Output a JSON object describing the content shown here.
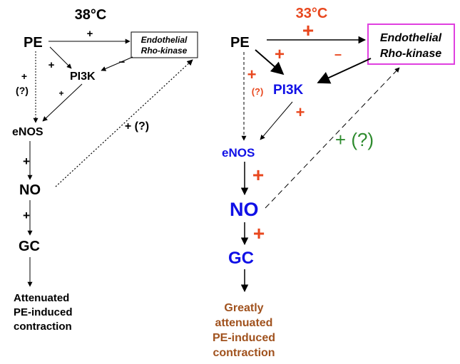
{
  "colors": {
    "black": "#000000",
    "orange": "#e8471e",
    "blue": "#1010e6",
    "green": "#2e8b2e",
    "brown": "#a0521e",
    "magenta": "#e040e0"
  },
  "left": {
    "temp": "38°C",
    "pe": "PE",
    "pi3k": "PI3K",
    "enos": "eNOS",
    "no": "NO",
    "gc": "GC",
    "rho_line1": "Endothelial",
    "rho_line2": "Rho-kinase",
    "sign_pe_rho": "+",
    "sign_pe_pi3k": "+",
    "sign_rho_pi3k": "−",
    "sign_pe_enos": "+",
    "sign_pe_enos_q": "(?)",
    "sign_pi3k_enos": "+",
    "sign_enos_no": "+",
    "sign_no_gc": "+",
    "sign_no_rho": "+ (?)",
    "outcome": [
      "Attenuated",
      "PE-induced",
      "contraction"
    ]
  },
  "right": {
    "temp": "33°C",
    "pe": "PE",
    "pi3k": "PI3K",
    "enos": "eNOS",
    "no": "NO",
    "gc": "GC",
    "rho_line1": "Endothelial",
    "rho_line2": "Rho-kinase",
    "sign_pe_rho": "+",
    "sign_pe_pi3k": "+",
    "sign_rho_pi3k": "–",
    "sign_pe_enos": "+",
    "sign_pe_enos_q": "(?)",
    "sign_pi3k_enos": "+",
    "sign_enos_no": "+",
    "sign_no_gc": "+",
    "sign_no_rho": "+ (?)",
    "outcome": [
      "Greatly",
      "attenuated",
      "PE-induced",
      "contraction"
    ]
  }
}
